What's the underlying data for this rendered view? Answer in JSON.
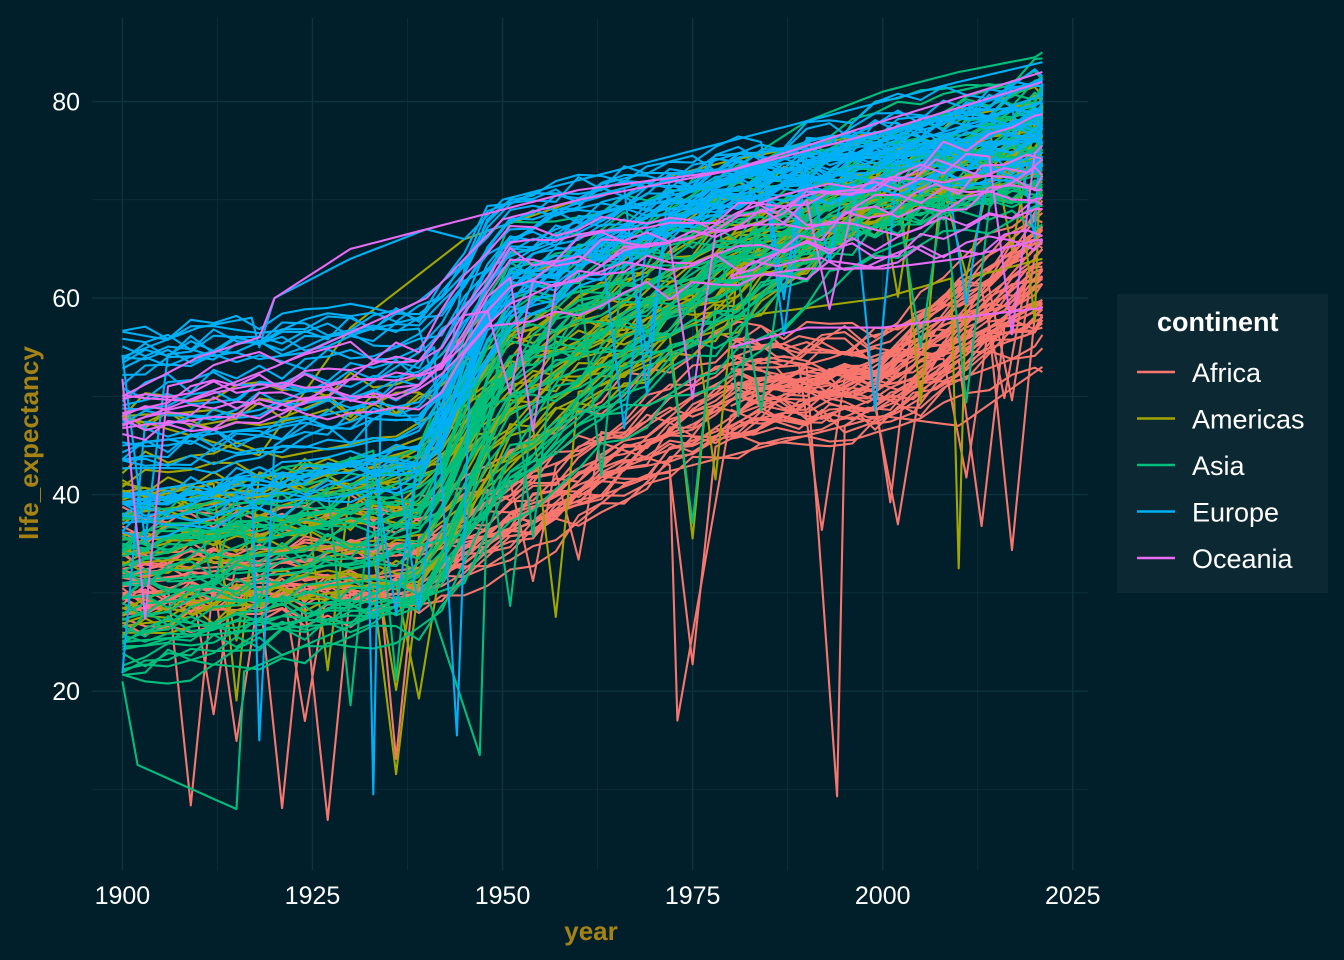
{
  "chart_data": {
    "type": "line",
    "title": "",
    "xlabel": "year",
    "ylabel": "life_expectancy",
    "xlim": [
      1896,
      2027
    ],
    "ylim": [
      1.8,
      88.5
    ],
    "x_ticks": [
      1900,
      1925,
      1950,
      1975,
      2000,
      2025
    ],
    "x_tick_labels": [
      "1900",
      "1925",
      "1950",
      "1975",
      "2000",
      "2025"
    ],
    "y_ticks": [
      20,
      40,
      60,
      80
    ],
    "y_tick_labels": [
      "20",
      "40",
      "60",
      "80"
    ],
    "grid": true,
    "legend": {
      "title": "continent",
      "position": "right"
    },
    "colors": {
      "background": "#011f2b",
      "grid": "#0e3340",
      "text": "#ffffff",
      "axis_title": "#a58214",
      "legend_panel": "#0c2933"
    },
    "series": [
      {
        "name": "Africa",
        "color": "#f8766d",
        "representative_lines": [
          {
            "x": [
              1900,
              1920,
              1940,
              1950,
              1960,
              1970,
              1980,
              1990,
              2000,
              2010,
              2020,
              2021
            ],
            "y": [
              32,
              33,
              34,
              37,
              41,
              44,
              47,
              51,
              54,
              58,
              64,
              65
            ]
          },
          {
            "x": [
              1900,
              1930,
              1945,
              1955,
              1965,
              1975,
              1985,
              1995,
              2005,
              2015,
              2021
            ],
            "y": [
              30,
              31,
              33,
              39,
              45,
              50,
              54,
              52,
              48,
              57,
              63
            ]
          },
          {
            "x": [
              1900,
              1940,
              1950,
              1960,
              1972,
              1973,
              1980,
              1990,
              1994,
              1995,
              2005,
              2021
            ],
            "y": [
              34,
              35,
              40,
              46,
              43,
              17,
              48,
              53,
              9.3,
              47,
              52,
              66
            ]
          },
          {
            "x": [
              1900,
              1950,
              1970,
              1990,
              2000,
              2010,
              2021
            ],
            "y": [
              31,
              36,
              42,
              46,
              48,
              47,
              53
            ]
          }
        ]
      },
      {
        "name": "Americas",
        "color": "#a3a500",
        "representative_lines": [
          {
            "x": [
              1900,
              1920,
              1940,
              1950,
              1960,
              1970,
              1980,
              1990,
              2000,
              2010,
              2020,
              2021
            ],
            "y": [
              38,
              40,
              46,
              52,
              58,
              62,
              66,
              70,
              73,
              76,
              77,
              79
            ]
          },
          {
            "x": [
              1900,
              1920,
              1940,
              1950,
              1960,
              1980,
              2000,
              2009,
              2010,
              2011,
              2021
            ],
            "y": [
              33,
              34,
              36,
              42,
              50,
              58,
              60,
              62,
              32.5,
              62,
              64
            ]
          },
          {
            "x": [
              1900,
              1918,
              1930,
              1945,
              1960,
              1980,
              2000,
              2021
            ],
            "y": [
              48,
              44,
              57,
              66,
              70,
              74,
              77,
              80
            ]
          }
        ]
      },
      {
        "name": "Asia",
        "color": "#00bf7d",
        "representative_lines": [
          {
            "x": [
              1900,
              1915,
              1930,
              1945,
              1950,
              1960,
              1970,
              1980,
              1990,
              2000,
              2010,
              2021
            ],
            "y": [
              25,
              26,
              27,
              31,
              40,
              50,
              58,
              64,
              68,
              72,
              75,
              77
            ]
          },
          {
            "x": [
              1900,
              1902,
              1915,
              1916,
              1940,
              1947,
              1948,
              1960,
              1980,
              2000,
              2021
            ],
            "y": [
              21,
              12.5,
              8,
              22,
              30,
              13.5,
              40,
              55,
              65,
              70,
              74
            ]
          },
          {
            "x": [
              1900,
              1930,
              1945,
              1950,
              1960,
              1970,
              1980,
              1990,
              2000,
              2010,
              2020,
              2021
            ],
            "y": [
              31,
              33,
              36,
              55,
              62,
              68,
              73,
              78,
              81,
              83,
              84.5,
              85
            ]
          }
        ]
      },
      {
        "name": "Europe",
        "color": "#00b0f6",
        "representative_lines": [
          {
            "x": [
              1900,
              1910,
              1917,
              1918,
              1920,
              1930,
              1940,
              1945,
              1950,
              1960,
              1970,
              1980,
              1990,
              2000,
              2010,
              2021
            ],
            "y": [
              54,
              57,
              58,
              55,
              60,
              64,
              67,
              66,
              70,
              72,
              74,
              76,
              78,
              80,
              82,
              84
            ]
          },
          {
            "x": [
              1900,
              1920,
              1932,
              1933,
              1934,
              1941,
              1944,
              1946,
              1950,
              1960,
              1970,
              1980,
              1990,
              2000,
              2010,
              2021
            ],
            "y": [
              45,
              47,
              49,
              9.5,
              50,
              55,
              15.5,
              58,
              65,
              70,
              72,
              73,
              74,
              76,
              79,
              82
            ]
          },
          {
            "x": [
              1900,
              1917,
              1918,
              1920,
              1940,
              1950,
              1960,
              1980,
              2000,
              2021
            ],
            "y": [
              40,
              42,
              15,
              45,
              55,
              63,
              68,
              72,
              75,
              80
            ]
          }
        ]
      },
      {
        "name": "Oceania",
        "color": "#e76bf3",
        "representative_lines": [
          {
            "x": [
              1900,
              1910,
              1918,
              1920,
              1930,
              1940,
              1950,
              1960,
              1980,
              2000,
              2021
            ],
            "y": [
              50,
              54,
              56,
              60,
              65,
              67,
              69,
              71,
              73,
              78,
              83
            ]
          },
          {
            "x": [
              1900,
              1920,
              1940,
              1950,
              1960,
              1980,
              2000,
              2021
            ],
            "y": [
              47,
              53,
              60,
              68,
              70,
              73,
              77,
              82
            ]
          },
          {
            "x": [
              1980,
              1990,
              2000,
              2010,
              2021
            ],
            "y": [
              55,
              57,
              57,
              58,
              59
            ]
          },
          {
            "x": [
              1980,
              1990,
              2000,
              2010,
              2021
            ],
            "y": [
              62,
              63,
              63,
              64,
              66
            ]
          }
        ]
      }
    ]
  }
}
